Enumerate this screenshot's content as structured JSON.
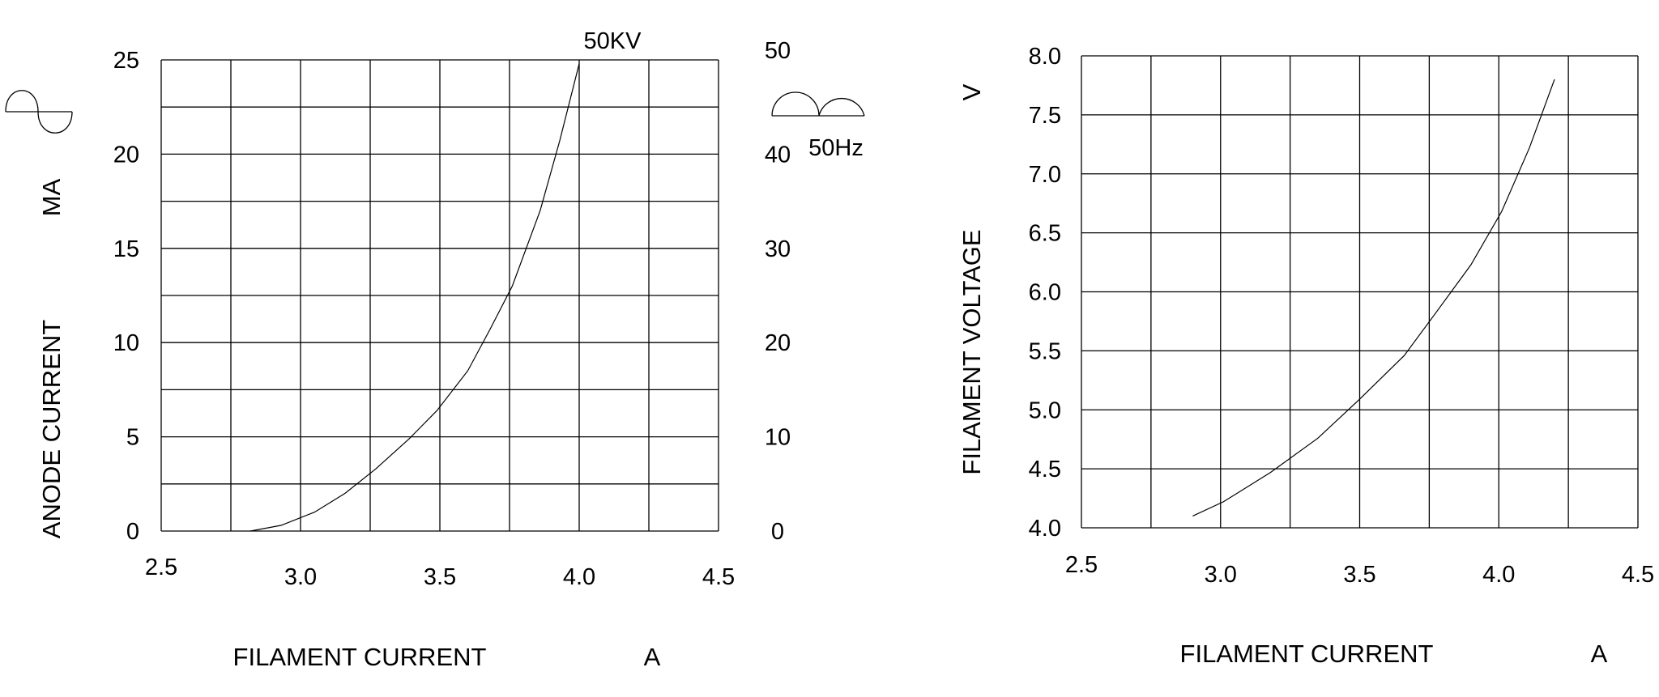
{
  "chart_data": [
    {
      "type": "line",
      "title": "",
      "xlabel": "FILAMENT CURRENT",
      "xunit": "A",
      "ylabel": "ANODE CURRENT",
      "yunit": "MA",
      "xlim": [
        2.5,
        4.5
      ],
      "ylim": [
        0,
        25
      ],
      "y2lim": [
        0,
        50
      ],
      "grid": true,
      "x_ticks": [
        "2.5",
        "3.0",
        "3.5",
        "4.0",
        "4.5"
      ],
      "y_ticks": [
        "0",
        "5",
        "10",
        "15",
        "20",
        "25"
      ],
      "y2_ticks": [
        "0",
        "10",
        "20",
        "30",
        "40",
        "50"
      ],
      "annotations": [
        "50KV",
        "50Hz"
      ],
      "icons": [
        "ac-sine-wave-icon",
        "full-wave-rectified-icon"
      ],
      "series": [
        {
          "name": "50KV",
          "x": [
            2.82,
            2.93,
            3.05,
            3.16,
            3.27,
            3.39,
            3.49,
            3.6,
            3.68,
            3.76,
            3.86,
            3.93,
            4.0
          ],
          "y": [
            0,
            0.3,
            1.0,
            2.0,
            3.3,
            4.9,
            6.4,
            8.5,
            10.7,
            13.0,
            17.0,
            20.7,
            24.8
          ]
        }
      ]
    },
    {
      "type": "line",
      "title": "",
      "xlabel": "FILAMENT CURRENT",
      "xunit": "A",
      "ylabel": "FILAMENT VOLTAGE",
      "yunit": "V",
      "xlim": [
        2.5,
        4.5
      ],
      "ylim": [
        4.0,
        8.0
      ],
      "grid": true,
      "x_ticks": [
        "2.5",
        "3.0",
        "3.5",
        "4.0",
        "4.5"
      ],
      "y_ticks": [
        "4.0",
        "4.5",
        "5.0",
        "5.5",
        "6.0",
        "6.5",
        "7.0",
        "7.5",
        "8.0"
      ],
      "series": [
        {
          "x": [
            2.9,
            3.01,
            3.18,
            3.35,
            3.5,
            3.66,
            3.77,
            3.9,
            4.01,
            4.11,
            4.2
          ],
          "y": [
            4.1,
            4.22,
            4.47,
            4.76,
            5.09,
            5.46,
            5.81,
            6.23,
            6.68,
            7.22,
            7.8
          ]
        }
      ]
    }
  ]
}
